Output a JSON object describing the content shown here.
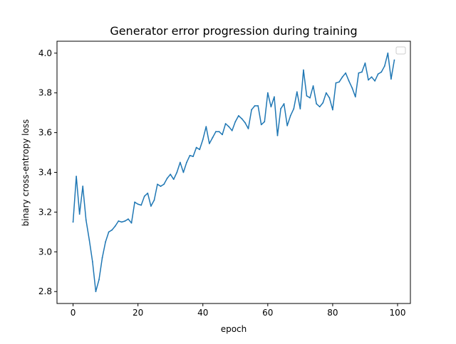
{
  "chart_data": {
    "type": "line",
    "title": "Generator error progression during training",
    "xlabel": "epoch",
    "ylabel": "binary cross-entropy loss",
    "xlim": [
      -4.95,
      103.95
    ],
    "ylim": [
      2.74,
      4.06
    ],
    "xticks": [
      0,
      20,
      40,
      60,
      80,
      100
    ],
    "yticks": [
      2.8,
      3.0,
      3.2,
      3.4,
      3.6,
      3.8,
      4.0
    ],
    "grid": false,
    "legend": "top-right",
    "series_color": "#1f77b4",
    "series": [
      {
        "x": [
          0,
          1,
          2,
          3,
          4,
          5,
          6,
          7,
          8,
          9,
          10,
          11,
          12,
          13,
          14,
          15,
          16,
          17,
          18,
          19,
          20,
          21,
          22,
          23,
          24,
          25,
          26,
          27,
          28,
          29,
          30,
          31,
          32,
          33,
          34,
          35,
          36,
          37,
          38,
          39,
          40,
          41,
          42,
          43,
          44,
          45,
          46,
          47,
          48,
          49,
          50,
          51,
          52,
          53,
          54,
          55,
          56,
          57,
          58,
          59,
          60,
          61,
          62,
          63,
          64,
          65,
          66,
          67,
          68,
          69,
          70,
          71,
          72,
          73,
          74,
          75,
          76,
          77,
          78,
          79,
          80,
          81,
          82,
          83,
          84,
          85,
          86,
          87,
          88,
          89,
          90,
          91,
          92,
          93,
          94,
          95,
          96,
          97,
          98,
          99
        ],
        "values": [
          3.15,
          3.38,
          3.19,
          3.33,
          3.16,
          3.06,
          2.95,
          2.8,
          2.86,
          2.97,
          3.05,
          3.1,
          3.11,
          3.13,
          3.155,
          3.15,
          3.155,
          3.165,
          3.145,
          3.25,
          3.24,
          3.235,
          3.28,
          3.295,
          3.23,
          3.26,
          3.34,
          3.33,
          3.34,
          3.37,
          3.39,
          3.365,
          3.4,
          3.45,
          3.4,
          3.45,
          3.485,
          3.48,
          3.525,
          3.515,
          3.565,
          3.63,
          3.545,
          3.575,
          3.605,
          3.605,
          3.59,
          3.645,
          3.63,
          3.61,
          3.655,
          3.685,
          3.67,
          3.65,
          3.62,
          3.715,
          3.735,
          3.735,
          3.64,
          3.655,
          3.8,
          3.73,
          3.78,
          3.585,
          3.72,
          3.745,
          3.635,
          3.685,
          3.72,
          3.805,
          3.72,
          3.915,
          3.785,
          3.775,
          3.835,
          3.745,
          3.73,
          3.75,
          3.8,
          3.775,
          3.715,
          3.85,
          3.855,
          3.88,
          3.9,
          3.86,
          3.825,
          3.78,
          3.9,
          3.905,
          3.95,
          3.865,
          3.88,
          3.86,
          3.895,
          3.905,
          3.935,
          4.0,
          3.87,
          3.965
        ]
      }
    ]
  }
}
